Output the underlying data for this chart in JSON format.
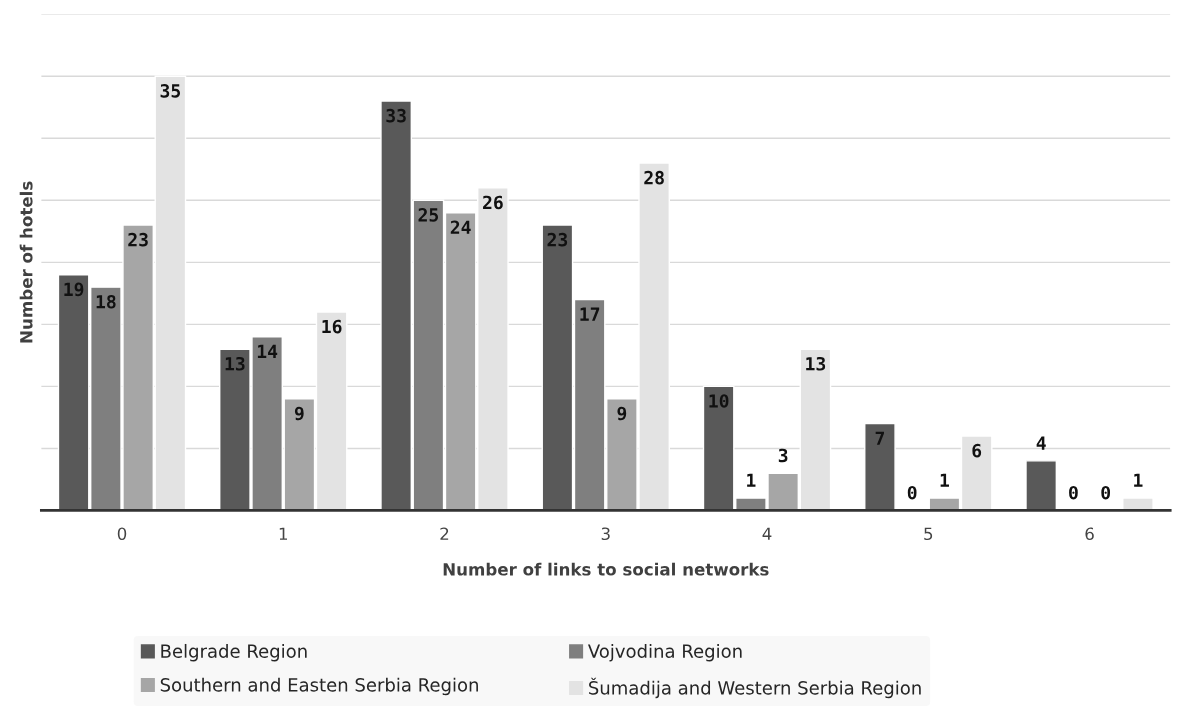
{
  "chart_data": {
    "type": "bar",
    "xlabel": "Number of links to social networks",
    "ylabel": "Number of hotels",
    "categories": [
      "0",
      "1",
      "2",
      "3",
      "4",
      "5",
      "6"
    ],
    "series": [
      {
        "name": "Belgrade Region",
        "color": "#595959",
        "values": [
          19,
          13,
          33,
          23,
          10,
          7,
          4
        ]
      },
      {
        "name": "Vojvodina Region",
        "color": "#7f7f7f",
        "values": [
          18,
          14,
          25,
          17,
          1,
          0,
          0
        ]
      },
      {
        "name": "Southern and Easten Serbia Region",
        "color": "#a6a6a6",
        "values": [
          23,
          9,
          24,
          9,
          3,
          1,
          0
        ]
      },
      {
        "name": "Šumadija and Western Serbia Region",
        "color": "#e3e3e3",
        "values": [
          35,
          16,
          26,
          28,
          13,
          6,
          1
        ]
      }
    ],
    "ylim": [
      0,
      40
    ],
    "yticks": [
      {
        "value": 0,
        "label": null
      },
      {
        "value": 5,
        "label": null
      },
      {
        "value": 10,
        "label": null
      },
      {
        "value": 15,
        "label": null
      },
      {
        "value": 20,
        "label": null
      },
      {
        "value": 25,
        "label": null
      },
      {
        "value": 30,
        "label": null
      },
      {
        "value": 35,
        "label": null
      },
      {
        "value": 40,
        "label": null
      }
    ],
    "tick_labels": "x",
    "grid": "y",
    "legend": "bottom",
    "data_labels": true
  }
}
